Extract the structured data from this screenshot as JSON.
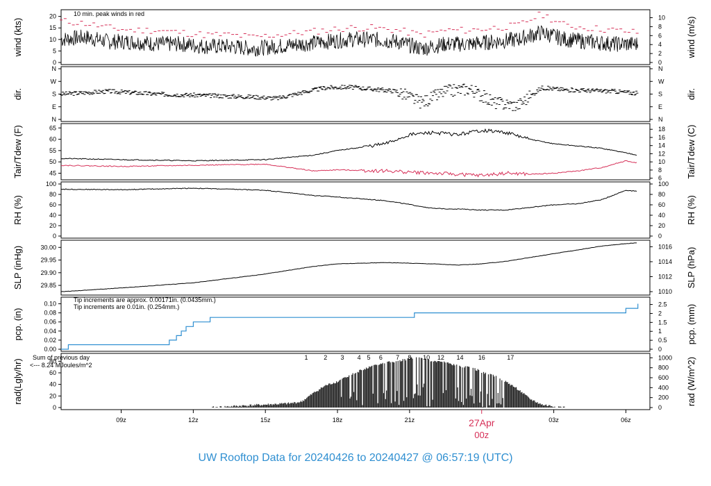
{
  "title": "UW Rooftop Data for 20240426  to  20240427 @ 06:57:19  (UTC)",
  "colors": {
    "title": "#2f8fd1",
    "red": "#d62f57",
    "blue": "#2f8fd1",
    "purple": "#a020f0",
    "black": "#000000"
  },
  "chart_data": [
    {
      "type": "line",
      "ylabel_left": "wind (kts)",
      "ylabel_right": "wind (m/s)",
      "ylim": [
        0,
        22
      ],
      "left_ticks": [
        "0",
        "5",
        "10",
        "15",
        "20"
      ],
      "right_ticks": [
        "0",
        "2",
        "4",
        "6",
        "8",
        "10"
      ],
      "annotation": "10 min. peak winds in red",
      "series": [
        {
          "x": [
            6.5,
            7.5,
            8.5,
            9.5,
            10.5,
            11.5,
            12.5,
            13.5,
            14.5,
            15.5,
            16.5,
            17.5,
            18.5,
            19.5,
            20.5,
            21.5,
            22.5,
            23.5,
            24.5,
            25.5,
            26.5,
            27.5,
            28.5,
            29.5,
            30.5
          ],
          "values": [
            10,
            11,
            9,
            9,
            8,
            8,
            7,
            7,
            6,
            7,
            8,
            9,
            10,
            10,
            9,
            6,
            8,
            8,
            9,
            10,
            13,
            10,
            9,
            8,
            8
          ]
        },
        {
          "name": "peak",
          "x": [
            6.5,
            7.5,
            8.5,
            9.5,
            10.5,
            11.5,
            12.5,
            13.5,
            14.5,
            15.5,
            16.5,
            17.5,
            18.5,
            19.5,
            20.5,
            21.5,
            22.5,
            23.5,
            24.5,
            25.5,
            26.5,
            27.5,
            28.5,
            29.5,
            30.5
          ],
          "values": [
            18,
            17,
            15,
            14,
            14,
            13,
            12,
            12,
            11,
            12,
            13,
            14,
            15,
            15,
            14,
            12,
            14,
            14,
            15,
            16,
            21,
            16,
            15,
            14,
            13
          ]
        }
      ]
    },
    {
      "type": "scatter",
      "ylabel_left": "dir.",
      "ylabel_right": "dir.",
      "tick_labels": [
        "N",
        "E",
        "S",
        "W",
        "N"
      ],
      "series": [
        {
          "x": [
            6.5,
            7.5,
            8.5,
            9.5,
            10.5,
            11.5,
            12.5,
            13.5,
            14.5,
            15.5,
            16.5,
            17.5,
            18.5,
            19.5,
            20.5,
            21.5,
            22.5,
            23.5,
            24.5,
            25.5,
            26.5,
            27.5,
            28.5,
            29.5,
            30.5
          ],
          "values": [
            180,
            190,
            200,
            190,
            180,
            175,
            170,
            165,
            160,
            150,
            190,
            225,
            230,
            215,
            200,
            120,
            200,
            220,
            120,
            100,
            225,
            210,
            205,
            200,
            185
          ]
        }
      ]
    },
    {
      "type": "line",
      "ylabel_left": "Tair/Tdew (F)",
      "ylabel_right": "Tair/Tdew (C)",
      "ylim": [
        43,
        66
      ],
      "left_ticks": [
        "45",
        "50",
        "55",
        "60",
        "65"
      ],
      "right_ticks": [
        "6",
        "8",
        "10",
        "12",
        "14",
        "16",
        "18"
      ],
      "series": [
        {
          "x": [
            6.5,
            9,
            12,
            15,
            17,
            18,
            20,
            21,
            22,
            23,
            24,
            25,
            26,
            27,
            28,
            29,
            30,
            30.5
          ],
          "values": [
            51.5,
            51,
            50.5,
            51,
            53,
            55,
            58,
            62,
            63,
            62,
            64,
            63,
            60,
            58,
            57,
            56,
            54,
            53
          ]
        },
        {
          "name": "dew",
          "x": [
            6.5,
            9,
            12,
            15,
            17,
            18,
            20,
            21,
            22,
            23,
            24,
            25,
            26,
            27,
            28,
            29,
            30,
            30.5
          ],
          "values": [
            48.5,
            48,
            48.5,
            49,
            46,
            46.5,
            46,
            45.5,
            45,
            44.5,
            44,
            45,
            44.5,
            45,
            46,
            47.5,
            50.5,
            49.5
          ]
        }
      ]
    },
    {
      "type": "line",
      "ylabel_left": "RH (%)",
      "ylabel_right": "RH (%)",
      "ylim": [
        0,
        100
      ],
      "left_ticks": [
        "0",
        "20",
        "40",
        "60",
        "80",
        "100"
      ],
      "right_ticks": [
        "0",
        "20",
        "40",
        "60",
        "80",
        "100"
      ],
      "series": [
        {
          "x": [
            6.5,
            9,
            12,
            15,
            17,
            18,
            20,
            22,
            23,
            24,
            25,
            26,
            27,
            28,
            29,
            30,
            30.5
          ],
          "values": [
            90,
            89,
            92,
            88,
            78,
            75,
            68,
            53,
            52,
            50,
            50,
            55,
            60,
            62,
            70,
            88,
            86
          ]
        }
      ]
    },
    {
      "type": "line",
      "ylabel_left": "SLP (inHg)",
      "ylabel_right": "SLP (hPa)",
      "ylim": [
        29.82,
        30.02
      ],
      "left_ticks": [
        "29.85",
        "29.90",
        "29.95",
        "30.00"
      ],
      "right_ticks": [
        "1010",
        "1012",
        "1014",
        "1016"
      ],
      "series": [
        {
          "x": [
            6.5,
            9,
            12,
            15,
            17,
            18,
            20,
            22,
            23,
            24,
            25,
            26,
            27,
            28,
            29,
            30,
            30.5
          ],
          "values": [
            29.825,
            29.84,
            29.86,
            29.895,
            29.925,
            29.935,
            29.94,
            29.935,
            29.93,
            29.935,
            29.945,
            29.96,
            29.975,
            29.99,
            30.005,
            30.015,
            30.018
          ]
        }
      ]
    },
    {
      "type": "line",
      "ylabel_left": "pcp. (in)",
      "ylabel_right": "pcp. (mm)",
      "ylim": [
        0,
        0.11
      ],
      "left_ticks": [
        "0.00",
        "0.02",
        "0.04",
        "0.06",
        "0.08",
        "0.10"
      ],
      "right_ticks": [
        "0",
        "0.5",
        "1",
        "1.5",
        "2",
        "2.5"
      ],
      "annotations": [
        "Tip increments are approx. 0.00171in. (0.0435mm.)",
        "Tip increments are 0.01in. (0.254mm.)"
      ],
      "series": [
        {
          "x": [
            6.5,
            6.8,
            11,
            11.3,
            11.5,
            11.7,
            12,
            12.7,
            21.2,
            30.0,
            30.5
          ],
          "values": [
            0,
            0.01,
            0.02,
            0.03,
            0.04,
            0.05,
            0.06,
            0.07,
            0.08,
            0.09,
            0.1
          ]
        }
      ]
    },
    {
      "type": "bar",
      "ylabel_left": "rad(Lgly/hr)",
      "ylabel_right": "rad (W/m^2)",
      "ylim": [
        0,
        90
      ],
      "left_ticks": [
        "0",
        "20",
        "40",
        "60",
        "80"
      ],
      "right_ticks": [
        "0",
        "200",
        "400",
        "600",
        "800",
        "1000"
      ],
      "annotations": [
        "Sum of previous day",
        "<--- 8.24 MJoules/m^2"
      ],
      "markers": [
        "1",
        "2",
        "3",
        "4",
        "5",
        "6",
        "7",
        "8",
        "10",
        "12",
        "14",
        "16",
        "17"
      ],
      "markers_x": [
        16.7,
        17.5,
        18.2,
        18.9,
        19.3,
        19.8,
        20.5,
        21,
        21.7,
        22.3,
        23.1,
        24.0,
        25.2
      ],
      "x": [
        12.8,
        14,
        15,
        16,
        16.5,
        17,
        17.5,
        18,
        18.5,
        19,
        19.5,
        20,
        20.5,
        21,
        21.5,
        22,
        22.5,
        23,
        23.5,
        24,
        24.5,
        25,
        25.5,
        26,
        26.5,
        27,
        27.5
      ],
      "values": [
        0,
        3,
        5,
        7,
        10,
        25,
        38,
        45,
        55,
        65,
        72,
        78,
        80,
        85,
        86,
        80,
        78,
        72,
        70,
        62,
        55,
        45,
        32,
        15,
        5,
        2,
        0
      ]
    }
  ],
  "xaxis": {
    "ticks": [
      "09z",
      "12z",
      "15z",
      "18z",
      "21z",
      "03z",
      "06z"
    ],
    "ticks_x": [
      9,
      12,
      15,
      18,
      21,
      27,
      30
    ],
    "day_label": "27Apr",
    "day_label_sub": "00z",
    "day_x": 24,
    "range": [
      6.5,
      31
    ]
  }
}
